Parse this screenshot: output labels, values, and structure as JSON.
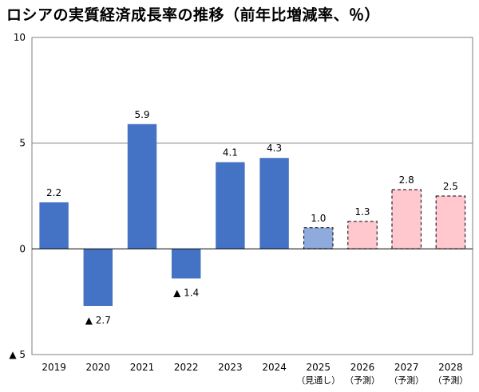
{
  "title": "ロシアの実質経済成長率の推移（前年比増減率、％）",
  "chart_data": {
    "type": "bar",
    "title": "ロシアの実質経済成長率の推移（前年比増減率、％）",
    "xlabel": "",
    "ylabel": "",
    "ylim": [
      -5,
      10
    ],
    "yticks": [
      {
        "value": 10,
        "label": "10"
      },
      {
        "value": 5,
        "label": "5"
      },
      {
        "value": 0,
        "label": "0"
      },
      {
        "value": -5,
        "label": "▲ 5"
      }
    ],
    "categories": [
      "2019",
      "2020",
      "2021",
      "2022",
      "2023",
      "2024",
      "2025",
      "2026",
      "2027",
      "2028"
    ],
    "category_notes": [
      "",
      "",
      "",
      "",
      "",
      "",
      "（見通し）",
      "（予測）",
      "（予測）",
      "（予測）"
    ],
    "values": [
      2.2,
      -2.7,
      5.9,
      -1.4,
      4.1,
      4.3,
      1.0,
      1.3,
      2.8,
      2.5
    ],
    "value_labels": [
      "2.2",
      "▲ 2.7",
      "5.9",
      "▲ 1.4",
      "4.1",
      "4.3",
      "1.0",
      "1.3",
      "2.8",
      "2.5"
    ],
    "bar_status": [
      "actual",
      "actual",
      "actual",
      "actual",
      "actual",
      "actual",
      "outlook",
      "forecast",
      "forecast",
      "forecast"
    ],
    "colors": {
      "actual": "#4472c4",
      "outlook": "#8faadc",
      "forecast": "#ffc7ce",
      "gridline": "#7f7f7f",
      "dashed_border": "#000000"
    }
  }
}
